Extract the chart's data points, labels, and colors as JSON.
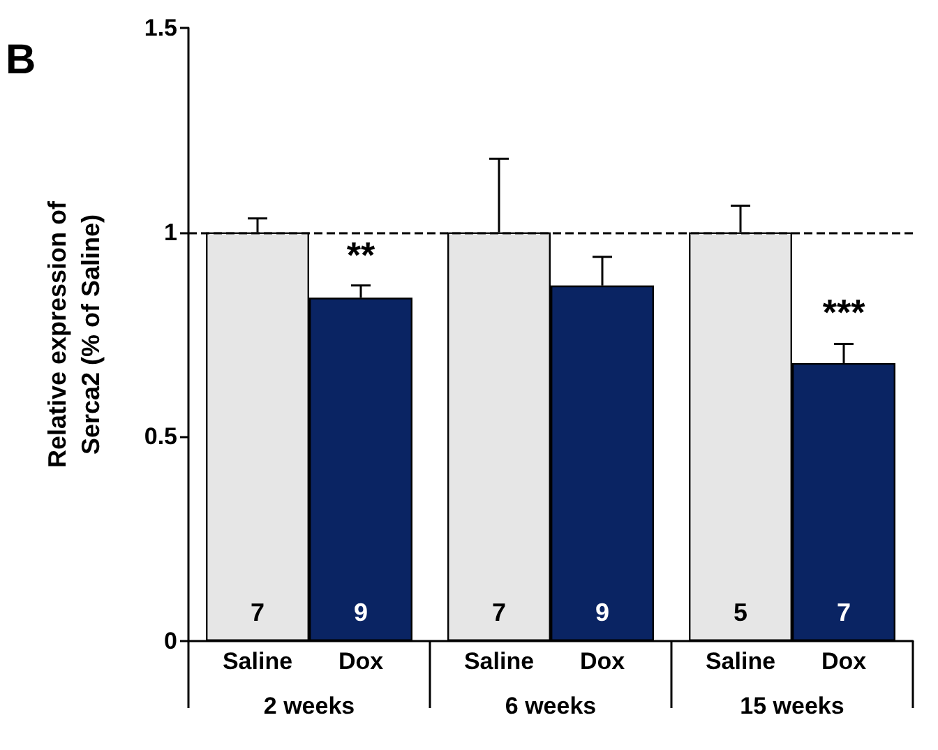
{
  "chart_data": {
    "type": "bar",
    "ylabel": "Relative expression of\nSerca2 (% of Saline)",
    "categories": [
      "2 weeks",
      "6 weeks",
      "15 weeks"
    ],
    "series": [
      {
        "name": "Saline",
        "color": "#e6e6e6",
        "values": [
          1,
          1,
          1
        ],
        "errors": [
          0.034,
          0.18,
          0.065
        ]
      },
      {
        "name": "Dox",
        "color": "#0a2463",
        "values": [
          0.84,
          0.87,
          0.68
        ],
        "errors": [
          0.03,
          0.07,
          0.047
        ]
      }
    ],
    "ylim": [
      0,
      1.5
    ],
    "yticks": [
      0,
      0.5,
      1,
      1.5
    ],
    "grid": false,
    "legend": false,
    "ref_lines": [
      {
        "axis": "y",
        "value": 1,
        "line_style": "dashed",
        "color": "#000000"
      }
    ],
    "annotations": [
      "B",
      {
        "text": "7",
        "x": "2 weeks",
        "y": 0.04
      },
      {
        "text": "9",
        "x": "2 weeks",
        "y": 0.04
      },
      {
        "text": "7",
        "x": "6 weeks",
        "y": 0.04
      },
      {
        "text": "9",
        "x": "6 weeks",
        "y": 0.04
      },
      {
        "text": "5",
        "x": "15 weeks",
        "y": 0.04
      },
      {
        "text": "7",
        "x": "15 weeks",
        "y": 0.04
      },
      {
        "text": "**",
        "x": "2 weeks",
        "y": 0.9
      },
      {
        "text": "***",
        "x": "15 weeks",
        "y": 0.76
      }
    ]
  }
}
